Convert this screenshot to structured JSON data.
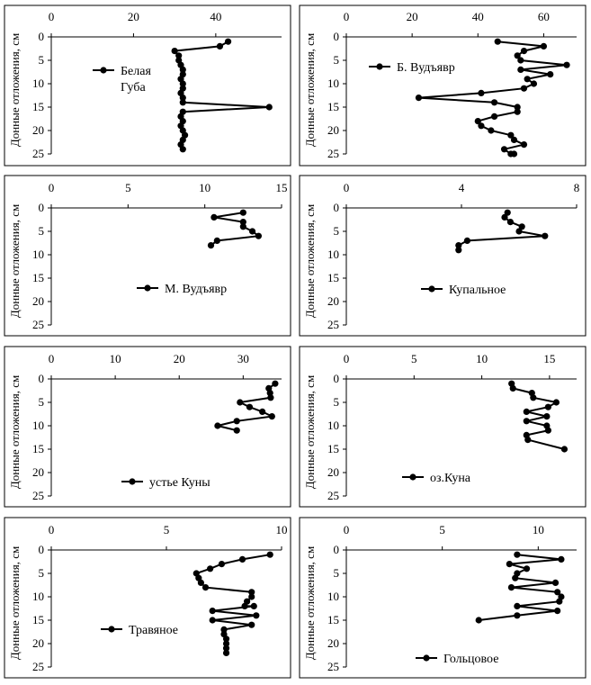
{
  "chart_data": [
    {
      "type": "line",
      "ylabel": "Донные отложения, см",
      "legend": "Белая Губа",
      "legend_lines": [
        "Белая",
        "Губа"
      ],
      "legend_position": "left",
      "xlim": [
        0,
        56
      ],
      "xticks": [
        0,
        20,
        40
      ],
      "ylim": [
        0,
        25
      ],
      "yticks": [
        0,
        5,
        10,
        15,
        20,
        25
      ],
      "x": [
        43,
        41,
        30,
        31,
        31,
        31.5,
        32,
        32,
        31.5,
        32,
        32,
        31.5,
        32,
        32,
        53,
        32,
        31.5,
        32,
        31.5,
        32,
        32.5,
        32,
        31.5,
        32
      ],
      "y": [
        1,
        2,
        3,
        4,
        5,
        6,
        7,
        8,
        9,
        10,
        11,
        12,
        13,
        14,
        15,
        16,
        17,
        18,
        19,
        20,
        21,
        22,
        23,
        24
      ]
    },
    {
      "type": "line",
      "ylabel": "Донные отложения, см",
      "legend": "Б. Вудъявр",
      "legend_lines": [
        "Б. Вудъявр"
      ],
      "legend_position": "left",
      "xlim": [
        0,
        70
      ],
      "xticks": [
        0,
        20,
        40,
        60
      ],
      "ylim": [
        0,
        25
      ],
      "yticks": [
        0,
        5,
        10,
        15,
        20,
        25
      ],
      "x": [
        46,
        60,
        54,
        52,
        53,
        67,
        53,
        62,
        55,
        57,
        54,
        41,
        22,
        45,
        52,
        52,
        45,
        40,
        41,
        44,
        50,
        51,
        54,
        48,
        50,
        51
      ],
      "y": [
        1,
        2,
        3,
        4,
        5,
        6,
        7,
        8,
        9,
        10,
        11,
        12,
        13,
        14,
        15,
        16,
        17,
        18,
        19,
        20,
        21,
        22,
        23,
        24,
        25,
        25
      ]
    },
    {
      "type": "line",
      "ylabel": "Донные отложения, см",
      "legend": "М. Вудъявр",
      "legend_lines": [
        "М. Вудъявр"
      ],
      "legend_position": "bottom",
      "xlim": [
        0,
        15
      ],
      "xticks": [
        0,
        5,
        10,
        15
      ],
      "ylim": [
        0,
        25
      ],
      "yticks": [
        0,
        5,
        10,
        15,
        20,
        25
      ],
      "x": [
        12.5,
        10.6,
        12.5,
        12.5,
        13.1,
        13.5,
        10.8,
        10.4
      ],
      "y": [
        1,
        2,
        3,
        4,
        5,
        6,
        7,
        8
      ]
    },
    {
      "type": "line",
      "ylabel": "Донные отложения, см",
      "legend": "Купальное",
      "legend_lines": [
        "Купальное"
      ],
      "legend_position": "bottom",
      "xlim": [
        0,
        8
      ],
      "xticks": [
        0,
        4,
        8
      ],
      "ylim": [
        0,
        25
      ],
      "yticks": [
        0,
        5,
        10,
        15,
        20,
        25
      ],
      "x": [
        5.6,
        5.5,
        5.7,
        6.1,
        6.0,
        6.9,
        4.2,
        3.9,
        3.9
      ],
      "y": [
        1,
        2,
        3,
        4,
        5,
        6,
        7,
        8,
        9
      ]
    },
    {
      "type": "line",
      "ylabel": "Донные отложения, см",
      "legend": "устье Куны",
      "legend_lines": [
        "устье Куны"
      ],
      "legend_position": "bottom",
      "xlim": [
        0,
        36
      ],
      "xticks": [
        0,
        10,
        20,
        30
      ],
      "ylim": [
        0,
        25
      ],
      "yticks": [
        0,
        5,
        10,
        15,
        20,
        25
      ],
      "x": [
        35,
        34,
        34.2,
        34.3,
        29.5,
        31,
        33,
        34.5,
        29,
        26,
        29
      ],
      "y": [
        1,
        2,
        3,
        4,
        5,
        6,
        7,
        8,
        9,
        10,
        11
      ]
    },
    {
      "type": "line",
      "ylabel": "Донные отложения, см",
      "legend": "оз.Куна",
      "legend_lines": [
        "оз.Куна"
      ],
      "legend_position": "bottom",
      "xlim": [
        0,
        17
      ],
      "xticks": [
        0,
        5,
        10,
        15
      ],
      "ylim": [
        0,
        25
      ],
      "yticks": [
        0,
        5,
        10,
        15,
        20,
        25
      ],
      "x": [
        12.2,
        12.3,
        13.7,
        13.8,
        15.5,
        14.9,
        13.3,
        14.8,
        13.3,
        14.8,
        14.9,
        13.3,
        13.4,
        16.1
      ],
      "y": [
        1,
        2,
        3,
        4,
        5,
        6,
        7,
        8,
        9,
        10,
        11,
        12,
        13,
        15
      ]
    },
    {
      "type": "line",
      "ylabel": "Донные отложения, см",
      "legend": "Травяное",
      "legend_lines": [
        "Травяное"
      ],
      "legend_position": "left",
      "xlim": [
        0,
        10
      ],
      "xticks": [
        0,
        5,
        10
      ],
      "ylim": [
        0,
        25
      ],
      "yticks": [
        0,
        5,
        10,
        15,
        20,
        25
      ],
      "x": [
        9.5,
        8.3,
        7.4,
        6.9,
        6.3,
        6.4,
        6.5,
        6.7,
        8.7,
        8.7,
        8.5,
        8.4,
        8.8,
        7.0,
        8.9,
        7.0,
        8.7,
        7.5,
        7.5,
        7.6,
        7.6,
        7.6,
        7.6
      ],
      "y": [
        1,
        2,
        3,
        4,
        5,
        6,
        7,
        8,
        9,
        10,
        11,
        12,
        12,
        13,
        14,
        15,
        16,
        17,
        18,
        19,
        20,
        21,
        22
      ]
    },
    {
      "type": "line",
      "ylabel": "Донные отложения, см",
      "legend": "Гольцовое",
      "legend_lines": [
        "Гольцовое"
      ],
      "legend_position": "bottom",
      "xlim": [
        0,
        12
      ],
      "xticks": [
        0,
        5,
        10
      ],
      "ylim": [
        0,
        25
      ],
      "yticks": [
        0,
        5,
        10,
        15,
        20,
        25
      ],
      "x": [
        8.9,
        11.2,
        8.5,
        9.4,
        8.9,
        8.8,
        10.9,
        8.6,
        11.0,
        11.2,
        11.1,
        8.9,
        11.0,
        8.9,
        6.9
      ],
      "y": [
        1,
        2,
        3,
        4,
        5,
        6,
        7,
        8,
        9,
        10,
        11,
        12,
        13,
        14,
        15
      ]
    }
  ]
}
